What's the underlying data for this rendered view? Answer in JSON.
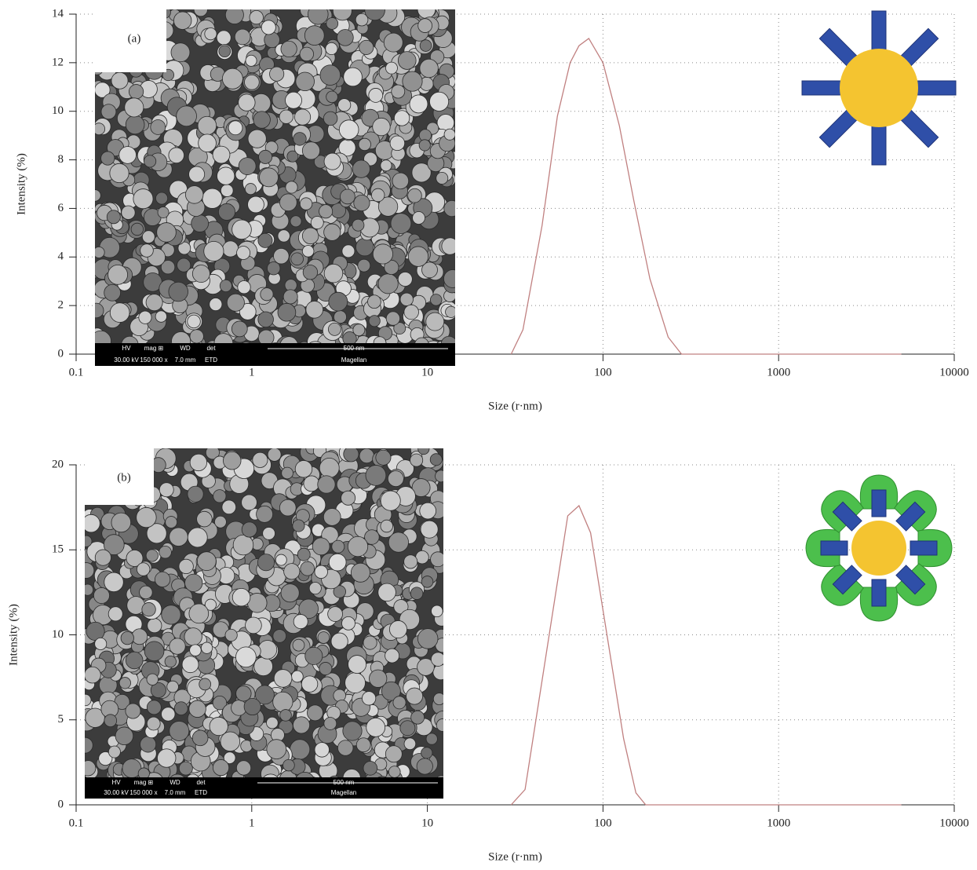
{
  "chart_data": [
    {
      "type": "line",
      "panel_label": "(a)",
      "xlabel": "Size (r·nm)",
      "ylabel": "Intensity (%)",
      "x": [
        30,
        35,
        45,
        55,
        65,
        73,
        83,
        100,
        124,
        150,
        185,
        235,
        280,
        5000
      ],
      "values": [
        0,
        1.0,
        5.3,
        9.8,
        12.0,
        12.7,
        13.0,
        12.0,
        9.4,
        6.3,
        3.1,
        0.7,
        0,
        0
      ],
      "color": "#c08080",
      "log_x": true,
      "grid": true,
      "xlim": [
        0.1,
        10000
      ],
      "xticks": [
        0.1,
        1,
        10,
        100,
        1000,
        10000
      ],
      "ylim": [
        0,
        14
      ],
      "yticks": [
        0,
        2,
        4,
        6,
        8,
        10,
        12,
        14
      ],
      "sem_bar": [
        "HV",
        "mag ⊞",
        "WD",
        "det",
        "500 nm",
        "30.00 kV",
        "150 000 x",
        "7.0 mm",
        "ETD",
        "Magellan"
      ]
    },
    {
      "type": "line",
      "panel_label": "(b)",
      "xlabel": "Size (r·nm)",
      "ylabel": "Intensity (%)",
      "x": [
        30,
        36,
        63,
        73,
        85,
        131,
        154,
        175,
        5000
      ],
      "values": [
        0,
        0.9,
        17.0,
        17.6,
        16.0,
        3.9,
        0.7,
        0,
        0
      ],
      "color": "#c08080",
      "log_x": true,
      "grid": true,
      "xlim": [
        0.1,
        10000
      ],
      "xticks": [
        0.1,
        1,
        10,
        100,
        1000,
        10000
      ],
      "ylim": [
        0,
        20
      ],
      "yticks": [
        0,
        5,
        10,
        15,
        20
      ],
      "sem_bar": [
        "HV",
        "mag ⊞",
        "WD",
        "det",
        "500 nm",
        "30.00 kV",
        "150 000 x",
        "7.0 mm",
        "ETD",
        "Magellan"
      ]
    }
  ]
}
